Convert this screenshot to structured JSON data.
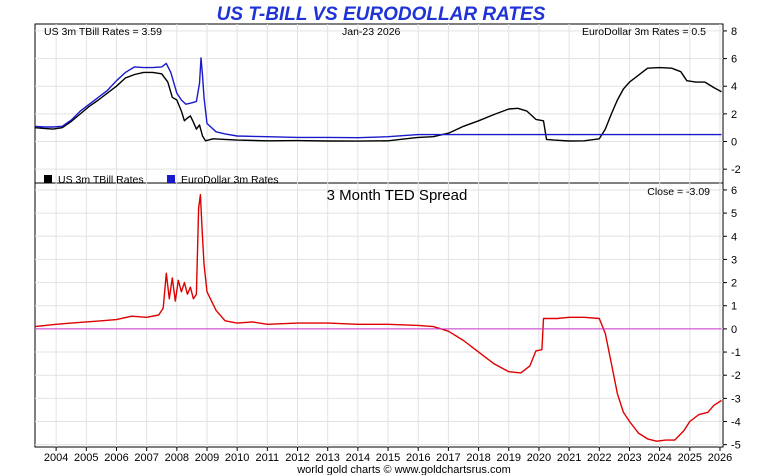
{
  "title": "US T-BILL VS EURODOLLAR RATES",
  "date": "Jan-23  2026",
  "tbill_readout": "US 3m TBill Rates = 3.59",
  "euro_readout": "EuroDollar 3m Rates = 0.5",
  "close_readout": "Close = -3.09",
  "footer": "world gold charts © www.goldchartsrus.com",
  "colors": {
    "title": "#1f33d6",
    "tbill": "#000000",
    "euro": "#1a1acc",
    "spread": "#e00000",
    "zero": "#cc33cc",
    "grid": "#e2e2e2"
  },
  "chart_data": [
    {
      "type": "line",
      "title": "US T-BILL VS EURODOLLAR RATES",
      "ylim": [
        -3,
        8.5
      ],
      "xlim": [
        2003.3,
        2026.1
      ],
      "y_ticks": [
        -2,
        0,
        2,
        4,
        6,
        8
      ],
      "x_ticks": [
        2004,
        2005,
        2006,
        2007,
        2008,
        2009,
        2010,
        2011,
        2012,
        2013,
        2014,
        2015,
        2016,
        2017,
        2018,
        2019,
        2020,
        2021,
        2022,
        2023,
        2024,
        2025,
        2026
      ],
      "legend": [
        {
          "label": "US 3m TBill Rates",
          "color": "#000000"
        },
        {
          "label": "EuroDollar 3m Rates",
          "color": "#1a1acc"
        }
      ],
      "series": [
        {
          "name": "US 3m TBill Rates",
          "x": [
            2003.3,
            2003.6,
            2003.9,
            2004.2,
            2004.5,
            2004.8,
            2005.1,
            2005.4,
            2005.7,
            2006.0,
            2006.3,
            2006.6,
            2006.9,
            2007.2,
            2007.5,
            2007.7,
            2007.85,
            2008.0,
            2008.15,
            2008.25,
            2008.35,
            2008.45,
            2008.55,
            2008.65,
            2008.75,
            2008.85,
            2008.95,
            2009.2,
            2009.6,
            2010.0,
            2011.0,
            2012.0,
            2013.0,
            2014.0,
            2015.0,
            2015.8,
            2016.0,
            2016.5,
            2017.0,
            2017.5,
            2018.0,
            2018.5,
            2019.0,
            2019.3,
            2019.6,
            2019.9,
            2020.15,
            2020.25,
            2020.5,
            2021.0,
            2021.5,
            2022.0,
            2022.2,
            2022.4,
            2022.6,
            2022.8,
            2023.0,
            2023.3,
            2023.6,
            2024.0,
            2024.4,
            2024.7,
            2024.9,
            2025.2,
            2025.5,
            2025.8,
            2026.05
          ],
          "values": [
            1.0,
            0.95,
            0.9,
            1.0,
            1.45,
            2.0,
            2.55,
            3.0,
            3.5,
            4.0,
            4.6,
            4.85,
            5.0,
            5.0,
            4.9,
            4.3,
            3.2,
            3.0,
            2.2,
            1.5,
            1.7,
            1.85,
            1.4,
            0.9,
            1.2,
            0.4,
            0.05,
            0.2,
            0.15,
            0.1,
            0.05,
            0.07,
            0.04,
            0.03,
            0.05,
            0.25,
            0.3,
            0.35,
            0.6,
            1.1,
            1.5,
            1.95,
            2.35,
            2.4,
            2.2,
            1.6,
            1.5,
            0.15,
            0.1,
            0.04,
            0.05,
            0.2,
            0.9,
            2.0,
            3.0,
            3.8,
            4.3,
            4.8,
            5.3,
            5.35,
            5.3,
            5.05,
            4.4,
            4.3,
            4.3,
            3.9,
            3.6
          ]
        },
        {
          "name": "EuroDollar 3m Rates",
          "x": [
            2003.3,
            2003.6,
            2003.9,
            2004.2,
            2004.5,
            2004.8,
            2005.1,
            2005.4,
            2005.7,
            2006.0,
            2006.3,
            2006.6,
            2006.9,
            2007.2,
            2007.5,
            2007.65,
            2007.8,
            2008.0,
            2008.15,
            2008.3,
            2008.5,
            2008.65,
            2008.75,
            2008.8,
            2008.85,
            2008.9,
            2009.0,
            2009.3,
            2009.6,
            2010.0,
            2011.0,
            2012.0,
            2013.0,
            2014.0,
            2015.0,
            2016.0,
            2016.5,
            2017.0,
            2018.0,
            2019.0,
            2020.0,
            2021.0,
            2022.0,
            2023.0,
            2024.0,
            2025.0,
            2026.05
          ],
          "values": [
            1.1,
            1.05,
            1.05,
            1.1,
            1.55,
            2.2,
            2.7,
            3.2,
            3.7,
            4.4,
            5.0,
            5.4,
            5.35,
            5.35,
            5.4,
            5.65,
            5.0,
            3.5,
            3.0,
            2.7,
            2.8,
            2.9,
            4.2,
            6.05,
            4.8,
            3.2,
            1.3,
            0.7,
            0.55,
            0.4,
            0.35,
            0.3,
            0.3,
            0.28,
            0.35,
            0.5,
            0.5,
            0.5,
            0.5,
            0.5,
            0.5,
            0.5,
            0.5,
            0.5,
            0.5,
            0.5,
            0.5
          ]
        }
      ]
    },
    {
      "type": "line",
      "title": "3 Month TED Spread",
      "ylim": [
        -5.1,
        6.3
      ],
      "xlim": [
        2003.3,
        2026.1
      ],
      "y_ticks": [
        -5,
        -4,
        -3,
        -2,
        -1,
        0,
        1,
        2,
        3,
        4,
        5,
        6
      ],
      "x_ticks": [
        2004,
        2005,
        2006,
        2007,
        2008,
        2009,
        2010,
        2011,
        2012,
        2013,
        2014,
        2015,
        2016,
        2017,
        2018,
        2019,
        2020,
        2021,
        2022,
        2023,
        2024,
        2025,
        2026
      ],
      "series": [
        {
          "name": "3 Month TED Spread",
          "x": [
            2003.3,
            2004.0,
            2004.5,
            2005.0,
            2005.5,
            2006.0,
            2006.5,
            2007.0,
            2007.4,
            2007.55,
            2007.65,
            2007.75,
            2007.85,
            2007.95,
            2008.05,
            2008.15,
            2008.25,
            2008.35,
            2008.45,
            2008.55,
            2008.65,
            2008.72,
            2008.78,
            2008.84,
            2008.9,
            2009.0,
            2009.15,
            2009.3,
            2009.6,
            2010.0,
            2010.5,
            2011.0,
            2012.0,
            2013.0,
            2014.0,
            2015.0,
            2016.0,
            2016.5,
            2017.0,
            2017.5,
            2018.0,
            2018.5,
            2019.0,
            2019.4,
            2019.7,
            2019.9,
            2020.1,
            2020.15,
            2020.3,
            2020.6,
            2021.0,
            2021.5,
            2022.0,
            2022.2,
            2022.4,
            2022.6,
            2022.8,
            2023.0,
            2023.3,
            2023.6,
            2023.9,
            2024.2,
            2024.5,
            2024.8,
            2025.0,
            2025.3,
            2025.6,
            2025.8,
            2026.05
          ],
          "values": [
            0.1,
            0.2,
            0.25,
            0.3,
            0.35,
            0.4,
            0.55,
            0.5,
            0.6,
            0.9,
            2.4,
            1.3,
            2.2,
            1.2,
            2.1,
            1.6,
            2.0,
            1.5,
            1.8,
            1.3,
            1.5,
            5.2,
            5.8,
            4.2,
            2.8,
            1.6,
            1.2,
            0.8,
            0.35,
            0.25,
            0.3,
            0.2,
            0.25,
            0.25,
            0.2,
            0.2,
            0.15,
            0.1,
            -0.1,
            -0.5,
            -1.0,
            -1.5,
            -1.85,
            -1.9,
            -1.6,
            -0.95,
            -0.9,
            0.45,
            0.45,
            0.45,
            0.5,
            0.5,
            0.45,
            -0.2,
            -1.5,
            -2.8,
            -3.6,
            -4.0,
            -4.5,
            -4.75,
            -4.85,
            -4.8,
            -4.8,
            -4.4,
            -4.0,
            -3.7,
            -3.6,
            -3.3,
            -3.09
          ]
        },
        {
          "name": "zero line",
          "x": [
            2003.3,
            2026.05
          ],
          "values": [
            0,
            0
          ]
        }
      ]
    }
  ]
}
